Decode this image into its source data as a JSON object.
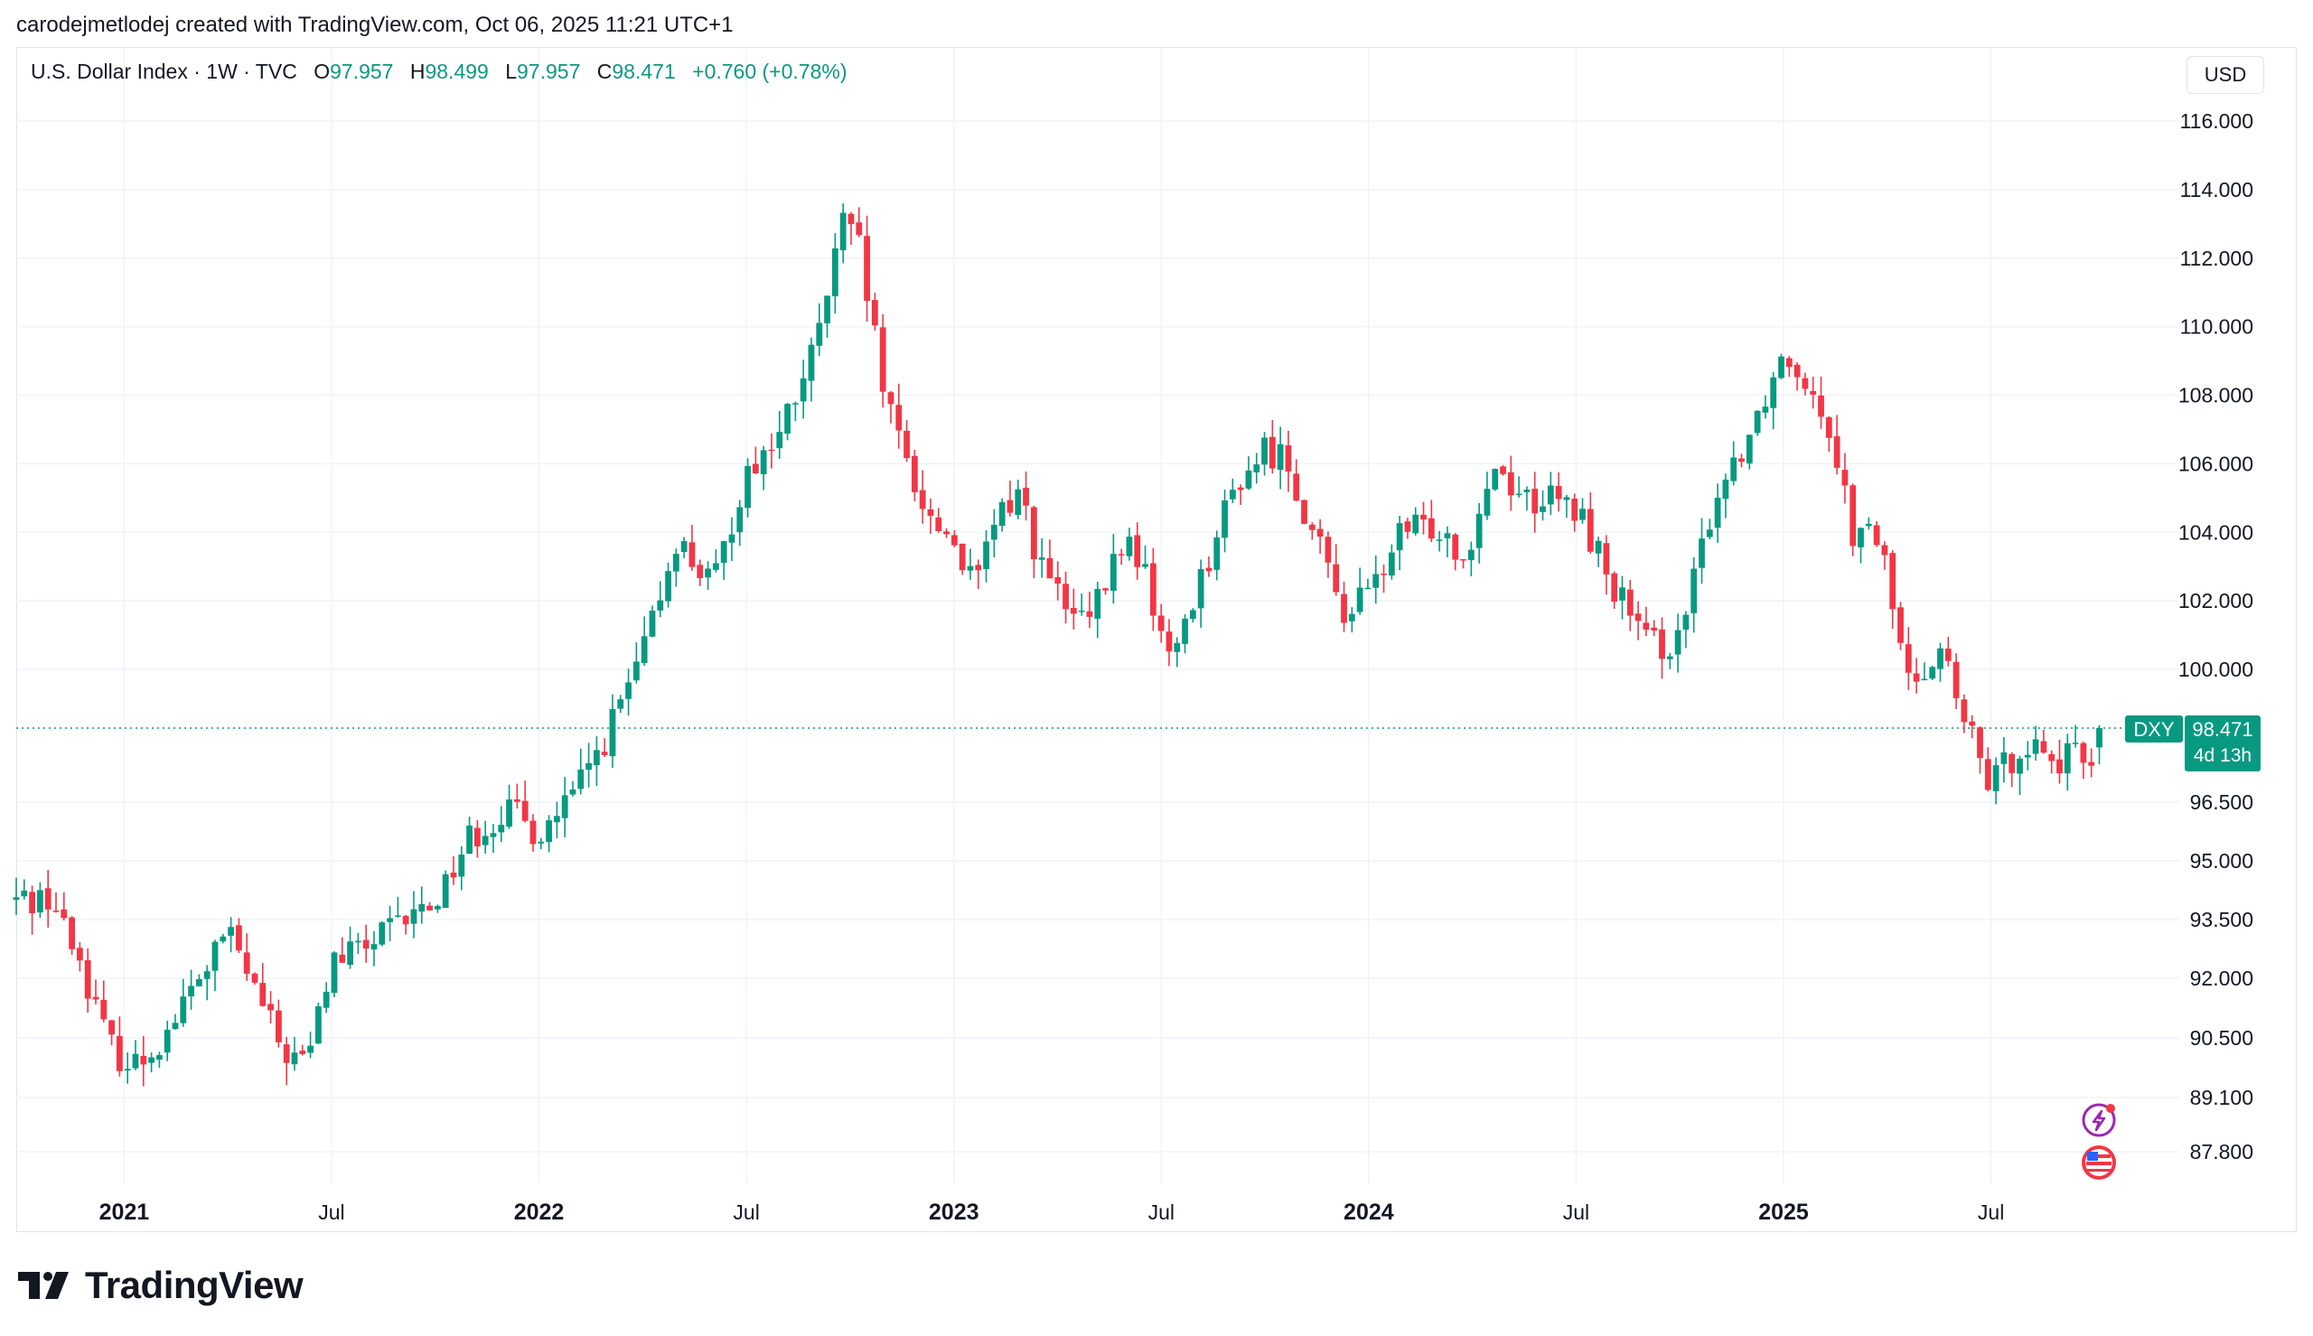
{
  "credit": "carodejmetlodej created with TradingView.com, Oct 06, 2025 11:21 UTC+1",
  "legend": {
    "symbol": "U.S. Dollar Index · 1W · TVC",
    "o_label": "O",
    "o": "97.957",
    "h_label": "H",
    "h": "98.499",
    "l_label": "L",
    "l": "97.957",
    "c_label": "C",
    "c": "98.471",
    "change": "+0.760 (+0.78%)"
  },
  "currency_button": "USD",
  "price_tag": {
    "symbol": "DXY",
    "price": "98.471",
    "countdown": "4d 13h"
  },
  "brand": "TradingView",
  "icons": [
    "lightning-icon",
    "us-flag-icon"
  ],
  "colors": {
    "up": "#089981",
    "down": "#f23645",
    "grid": "#f0f3fa",
    "text": "#131722"
  },
  "chart_data": {
    "type": "candlestick",
    "timeframe": "1W",
    "last_price": 98.471,
    "y_ticks": [
      "116.000",
      "114.000",
      "112.000",
      "110.000",
      "108.000",
      "106.000",
      "104.000",
      "102.000",
      "100.000",
      "96.500",
      "95.000",
      "93.500",
      "92.000",
      "90.500",
      "89.100",
      "87.800"
    ],
    "x_ticks": [
      {
        "label": "2021",
        "bold": true,
        "t": 2021.0
      },
      {
        "label": "Jul",
        "bold": false,
        "t": 2021.5
      },
      {
        "label": "2022",
        "bold": true,
        "t": 2022.0
      },
      {
        "label": "Jul",
        "bold": false,
        "t": 2022.5
      },
      {
        "label": "2023",
        "bold": true,
        "t": 2023.0
      },
      {
        "label": "Jul",
        "bold": false,
        "t": 2023.5
      },
      {
        "label": "2024",
        "bold": true,
        "t": 2024.0
      },
      {
        "label": "Jul",
        "bold": false,
        "t": 2024.5
      },
      {
        "label": "2025",
        "bold": true,
        "t": 2025.0
      },
      {
        "label": "Jul",
        "bold": false,
        "t": 2025.5
      }
    ],
    "x_start": 2020.74,
    "anchors": [
      [
        2020.74,
        94.0
      ],
      [
        2020.82,
        94.1
      ],
      [
        2020.9,
        92.3
      ],
      [
        2020.96,
        90.4
      ],
      [
        2021.02,
        89.8
      ],
      [
        2021.1,
        90.6
      ],
      [
        2021.17,
        91.8
      ],
      [
        2021.25,
        93.2
      ],
      [
        2021.32,
        91.6
      ],
      [
        2021.38,
        90.2
      ],
      [
        2021.44,
        89.9
      ],
      [
        2021.5,
        92.4
      ],
      [
        2021.58,
        92.8
      ],
      [
        2021.67,
        93.4
      ],
      [
        2021.75,
        94.0
      ],
      [
        2021.83,
        95.6
      ],
      [
        2021.92,
        96.3
      ],
      [
        2022.0,
        95.7
      ],
      [
        2022.08,
        96.6
      ],
      [
        2022.17,
        98.4
      ],
      [
        2022.25,
        100.4
      ],
      [
        2022.33,
        103.8
      ],
      [
        2022.42,
        102.4
      ],
      [
        2022.5,
        105.8
      ],
      [
        2022.58,
        106.8
      ],
      [
        2022.67,
        109.5
      ],
      [
        2022.73,
        113.0
      ],
      [
        2022.77,
        112.3
      ],
      [
        2022.84,
        107.5
      ],
      [
        2022.88,
        106.3
      ],
      [
        2022.94,
        104.4
      ],
      [
        2023.0,
        103.8
      ],
      [
        2023.05,
        102.3
      ],
      [
        2023.1,
        104.3
      ],
      [
        2023.16,
        105.3
      ],
      [
        2023.2,
        103.3
      ],
      [
        2023.28,
        101.5
      ],
      [
        2023.33,
        101.4
      ],
      [
        2023.41,
        103.8
      ],
      [
        2023.45,
        103.2
      ],
      [
        2023.52,
        100.2
      ],
      [
        2023.56,
        101.6
      ],
      [
        2023.62,
        103.5
      ],
      [
        2023.68,
        105.4
      ],
      [
        2023.75,
        106.4
      ],
      [
        2023.8,
        106.2
      ],
      [
        2023.87,
        103.8
      ],
      [
        2023.94,
        101.7
      ],
      [
        2024.0,
        102.2
      ],
      [
        2024.08,
        104.0
      ],
      [
        2024.17,
        104.2
      ],
      [
        2024.23,
        103.3
      ],
      [
        2024.3,
        106.0
      ],
      [
        2024.38,
        105.0
      ],
      [
        2024.46,
        104.9
      ],
      [
        2024.52,
        104.3
      ],
      [
        2024.57,
        102.9
      ],
      [
        2024.67,
        100.7
      ],
      [
        2024.75,
        100.8
      ],
      [
        2024.83,
        104.9
      ],
      [
        2024.92,
        107.0
      ],
      [
        2025.0,
        109.3
      ],
      [
        2025.06,
        108.5
      ],
      [
        2025.12,
        106.8
      ],
      [
        2025.17,
        103.8
      ],
      [
        2025.23,
        103.9
      ],
      [
        2025.3,
        99.6
      ],
      [
        2025.38,
        100.7
      ],
      [
        2025.42,
        99.0
      ],
      [
        2025.5,
        96.9
      ],
      [
        2025.58,
        98.2
      ],
      [
        2025.66,
        97.6
      ],
      [
        2025.74,
        97.7
      ],
      [
        2025.76,
        98.47
      ]
    ]
  }
}
